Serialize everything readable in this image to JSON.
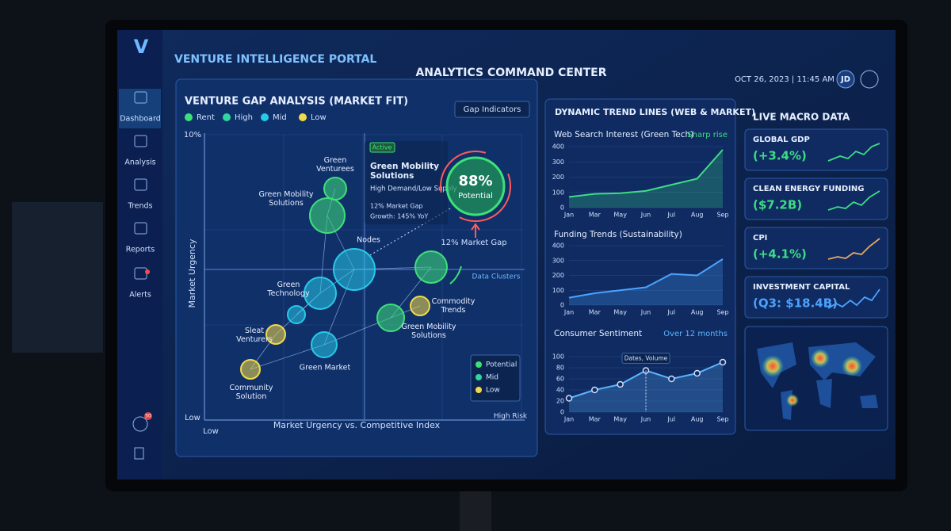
{
  "header": {
    "title": "VENTURE INTELLIGENCE PORTAL",
    "center_title": "ANALYTICS COMMAND CENTER",
    "datetime": "OCT 26, 2023 | 11:45 AM",
    "user": "JD"
  },
  "sidebar": {
    "items": [
      "Dashboard",
      "Analysis",
      "Trends",
      "Reports",
      "Alerts"
    ],
    "badge": "50"
  },
  "gap_analysis": {
    "title": "VENTURE GAP ANALYSIS (MARKET FIT)",
    "legend": [
      {
        "name": "Rent",
        "color": "#3ee07a"
      },
      {
        "name": "High",
        "color": "#2fd6a0"
      },
      {
        "name": "Mid",
        "color": "#27c9e8"
      },
      {
        "name": "Low",
        "color": "#f2d94a"
      }
    ],
    "button": "Gap Indicators",
    "y_axis_label": "Market Urgency",
    "x_axis_label": "Market Urgency vs. Competitive Index",
    "y_top": "10%",
    "y_bottom": "Low",
    "x_left": "Low",
    "x_right": "High Risk",
    "cluster_label": "Data Clusters",
    "nodes": [
      {
        "label": [
          "Green",
          "Venturees"
        ],
        "level": "Rent"
      },
      {
        "label": [
          "Green Mobility",
          "Solutions"
        ],
        "level": "Rent"
      },
      {
        "label": [
          "Nodes"
        ],
        "level": "Mid"
      },
      {
        "label": [
          "Green",
          "Technology"
        ],
        "level": "Mid"
      },
      {
        "label": null,
        "level": "Mid"
      },
      {
        "label": [
          "Sleat",
          "Venturers"
        ],
        "level": "Low"
      },
      {
        "label": [
          "Green Market"
        ],
        "level": "Mid"
      },
      {
        "label": [
          "Community",
          "Solution"
        ],
        "level": "Low"
      },
      {
        "label": null,
        "level": "Rent"
      },
      {
        "label": [
          "Commodity",
          "Trends"
        ],
        "level": "Low"
      },
      {
        "label": [
          "Green Mobility",
          "Solutions"
        ],
        "level": "Rent"
      }
    ],
    "callout": {
      "badge": "Active",
      "title": [
        "Green Mobility",
        "Solutions"
      ],
      "subtitle": "High Demand/Low Supply",
      "gap": "12% Market Gap",
      "growth": "Growth: 145% YoY"
    },
    "gauge": {
      "value": "88%",
      "label": "Potential"
    },
    "gap_label": "12% Market Gap",
    "key": [
      {
        "name": "Potential",
        "color": "#3ee07a"
      },
      {
        "name": "Mid",
        "color": "#2fd6a0"
      },
      {
        "name": "Low",
        "color": "#f2d94a"
      }
    ]
  },
  "trends": {
    "title": "DYNAMIC TREND LINES (WEB & MARKET)",
    "charts": [
      {
        "type": "line",
        "title": "Web Search Interest (Green Tech)",
        "note": "Sharp rise",
        "categories": [
          "Jan",
          "Mar",
          "May",
          "Jun",
          "Jul",
          "Aug",
          "Sep"
        ],
        "values": [
          70,
          90,
          95,
          110,
          150,
          190,
          380
        ],
        "color": "#3ddc84",
        "ylim": [
          0,
          400
        ],
        "yticks": [
          0,
          100,
          200,
          300,
          400
        ]
      },
      {
        "type": "line",
        "title": "Funding Trends (Sustainability)",
        "categories": [
          "Jan",
          "Mar",
          "May",
          "Jun",
          "Jul",
          "Aug",
          "Sep"
        ],
        "values": [
          50,
          80,
          100,
          120,
          210,
          200,
          310
        ],
        "color": "#4ba3ff",
        "ylim": [
          0,
          400
        ],
        "yticks": [
          0,
          100,
          200,
          300,
          400
        ]
      },
      {
        "type": "line",
        "title": "Consumer Sentiment",
        "note": "Over 12 months",
        "annotation": {
          "text": "Dates, Volume",
          "category": "Jun"
        },
        "markers": true,
        "categories": [
          "Jan",
          "Mar",
          "May",
          "Jun",
          "Jul",
          "Aug",
          "Sep"
        ],
        "values": [
          25,
          40,
          50,
          75,
          60,
          70,
          90
        ],
        "color": "#5ab4ff",
        "ylim": [
          0,
          100
        ],
        "yticks": [
          0,
          20,
          40,
          60,
          80,
          100
        ]
      }
    ]
  },
  "macro": {
    "title": "LIVE MACRO DATA",
    "cards": [
      {
        "name": "GLOBAL GDP",
        "value": "(+3.4%)",
        "color": "#3ddc84"
      },
      {
        "name": "CLEAN ENERGY FUNDING",
        "value": "($7.2B)",
        "color": "#3ddc84"
      },
      {
        "name": "CPI",
        "value": "(+4.1%)",
        "color": "#e8a860"
      },
      {
        "name": "INVESTMENT CAPITAL",
        "value": "(Q3: $18.4B)",
        "color": "#4ba3ff"
      }
    ]
  }
}
